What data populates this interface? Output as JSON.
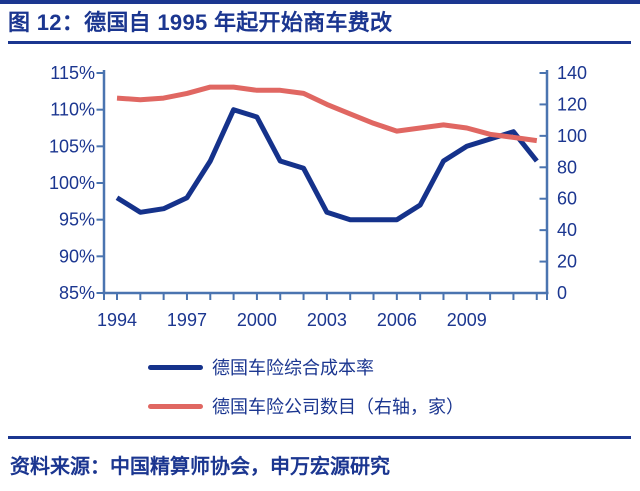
{
  "header": {
    "title": "图 12：德国自 1995 年起开始商车费改"
  },
  "footer": {
    "source": "资料来源：中国精算师协会，申万宏源研究"
  },
  "colors": {
    "navy": "#1b3690",
    "axis": "#4a74b0",
    "series_blue": "#15328b",
    "series_red": "#e06762",
    "background": "#ffffff"
  },
  "chart_data": {
    "type": "line",
    "title": "德国自 1995 年起开始商车费改",
    "x": [
      1994,
      1995,
      1996,
      1997,
      1998,
      1999,
      2000,
      2001,
      2002,
      2003,
      2004,
      2005,
      2006,
      2007,
      2008,
      2009,
      2010,
      2011,
      2012
    ],
    "x_labeled_years": [
      1994,
      1997,
      2000,
      2003,
      2006,
      2009
    ],
    "x_tick_labels": [
      "1994",
      "1997",
      "2000",
      "2003",
      "2006",
      "2009"
    ],
    "left_axis": {
      "min": 85,
      "max": 115,
      "step": 5,
      "format": "percent",
      "tick_values": [
        85,
        90,
        95,
        100,
        105,
        110,
        115
      ],
      "tick_labels": [
        "85%",
        "90%",
        "95%",
        "100%",
        "105%",
        "110%",
        "115%"
      ]
    },
    "right_axis": {
      "min": 0,
      "max": 140,
      "step": 20,
      "tick_values": [
        0,
        20,
        40,
        60,
        80,
        100,
        120,
        140
      ],
      "tick_labels": [
        "0",
        "20",
        "40",
        "60",
        "80",
        "100",
        "120",
        "140"
      ]
    },
    "series": [
      {
        "name": "德国车险综合成本率",
        "axis": "left",
        "color": "#15328b",
        "values": [
          98,
          96,
          96.5,
          98,
          103,
          110,
          109,
          103,
          102,
          96,
          95,
          95,
          95,
          97,
          103,
          105,
          106,
          107,
          103
        ]
      },
      {
        "name": "德国车险公司数目（右轴，家）",
        "axis": "right",
        "color": "#e06762",
        "values": [
          124,
          123,
          124,
          127,
          131,
          131,
          129,
          129,
          127,
          120,
          114,
          108,
          103,
          105,
          107,
          105,
          101,
          99,
          97
        ]
      }
    ],
    "legend_position": "bottom-left",
    "grid": false
  }
}
